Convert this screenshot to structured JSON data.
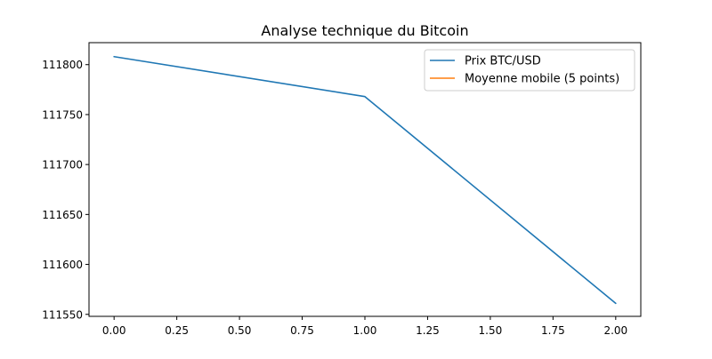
{
  "chart_data": {
    "type": "line",
    "title": "Analyse technique du Bitcoin",
    "xlabel": "",
    "ylabel": "",
    "x": [
      0,
      1,
      2
    ],
    "series": [
      {
        "name": "Prix BTC/USD",
        "color": "#1f77b4",
        "values": [
          111808,
          111768,
          111561
        ]
      },
      {
        "name": "Moyenne mobile (5 points)",
        "color": "#ff7f0e",
        "values": [
          null,
          null,
          null
        ]
      }
    ],
    "xlim": [
      -0.1,
      2.1
    ],
    "ylim": [
      111548,
      111822
    ],
    "xticks": [
      0.0,
      0.25,
      0.5,
      0.75,
      1.0,
      1.25,
      1.5,
      1.75,
      2.0
    ],
    "xtick_labels": [
      "0.00",
      "0.25",
      "0.50",
      "0.75",
      "1.00",
      "1.25",
      "1.50",
      "1.75",
      "2.00"
    ],
    "yticks": [
      111550,
      111600,
      111650,
      111700,
      111750,
      111800
    ],
    "ytick_labels": [
      "111550",
      "111600",
      "111650",
      "111700",
      "111750",
      "111800"
    ],
    "grid": false,
    "legend_position": "top-right"
  }
}
